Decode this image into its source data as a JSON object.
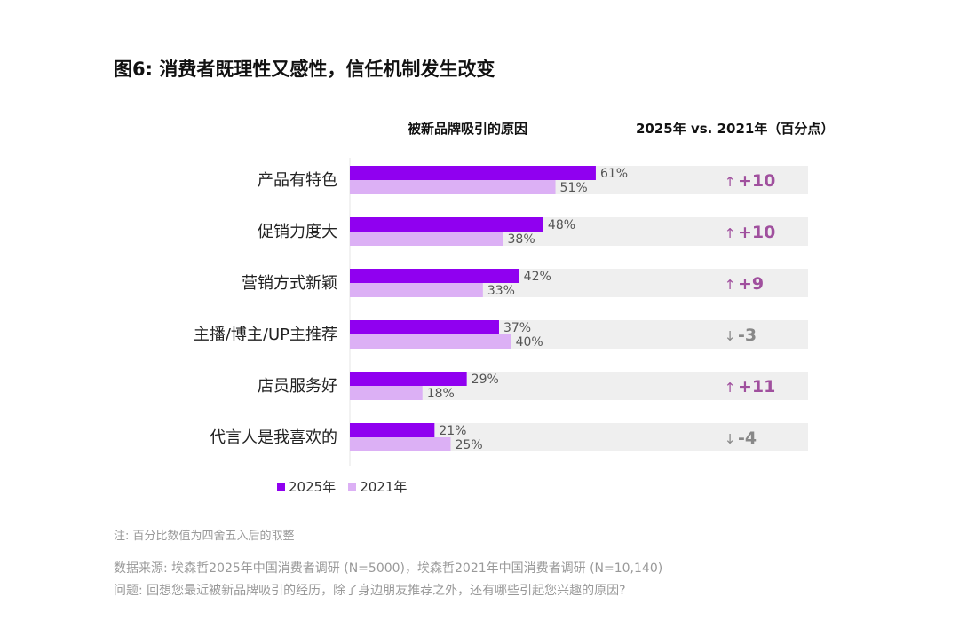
{
  "title": "图6: 消费者既理性又感性，信任机制发生改变",
  "column_headers": {
    "reasons": "被新品牌吸引的原因",
    "change": "2025年 vs. 2021年（百分点）"
  },
  "colors": {
    "2025": "#9000f0",
    "2021": "#dcb0f5",
    "track": "#efefef",
    "up": "#a0509e",
    "down": "#888888"
  },
  "chart_data": {
    "type": "bar",
    "orientation": "horizontal",
    "categories": [
      "产品有特色",
      "促销力度大",
      "营销方式新颖",
      "主播/博主/UP主推荐",
      "店员服务好",
      "代言人是我喜欢的"
    ],
    "series": [
      {
        "name": "2025年",
        "values": [
          61,
          48,
          42,
          37,
          29,
          21
        ],
        "labels": [
          "61%",
          "48%",
          "42%",
          "37%",
          "29%",
          "21%"
        ]
      },
      {
        "name": "2021年",
        "values": [
          51,
          38,
          33,
          40,
          18,
          25
        ],
        "labels": [
          "51%",
          "38%",
          "33%",
          "40%",
          "18%",
          "25%"
        ]
      }
    ],
    "changes": [
      "+10",
      "+10",
      "+9",
      "-3",
      "+11",
      "-4"
    ],
    "change_direction": [
      "up",
      "up",
      "up",
      "down",
      "up",
      "down"
    ],
    "xlim": [
      0,
      100
    ],
    "legend": "bottom-left"
  },
  "notes": {
    "note": "注: 百分比数值为四舍五入后的取整",
    "source": "数据来源: 埃森哲2025年中国消费者调研 (N=5000)，埃森哲2021年中国消费者调研 (N=10,140)",
    "question": "问题: 回想您最近被新品牌吸引的经历，除了身边朋友推荐之外，还有哪些引起您兴趣的原因?"
  }
}
